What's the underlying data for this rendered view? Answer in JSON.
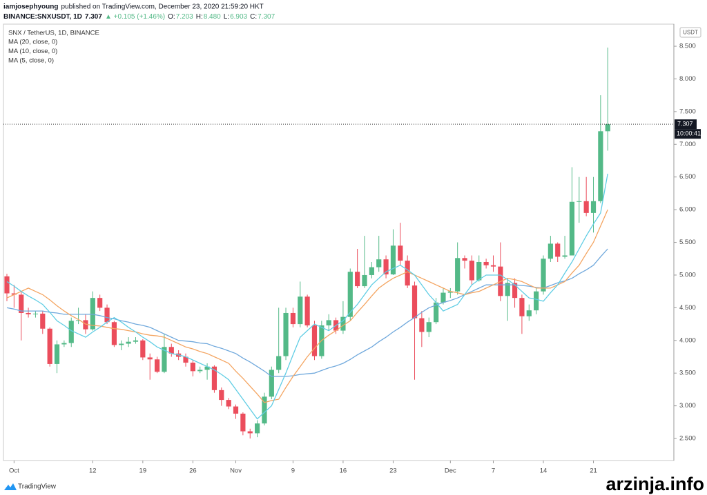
{
  "header": {
    "author": "iamjosephyoung",
    "published": "published on TradingView.com, December 23, 2020 21:59:20 HKT"
  },
  "branding": {
    "logo": "TradingView",
    "watermark": "arzinja.info"
  },
  "chart_data": {
    "type": "candlestick",
    "title": "SNX / TetherUS, 1D, BINANCE",
    "quote": {
      "symbol": "BINANCE:SNXUSDT, 1D",
      "last": "7.307",
      "change": "▲ +0.105 (+1.46%)",
      "fields": [
        [
          "O:",
          "7.203"
        ],
        [
          "H:",
          "8.480"
        ],
        [
          "L:",
          "6.903"
        ],
        [
          "C:",
          "7.307"
        ]
      ]
    },
    "currency": "USDT",
    "countdown": "10:00:41",
    "up_color": "#53b987",
    "down_color": "#eb4d5c",
    "categories": [
      null,
      "Oct",
      null,
      null,
      null,
      null,
      null,
      null,
      null,
      null,
      null,
      null,
      "12",
      null,
      null,
      null,
      null,
      null,
      null,
      "19",
      null,
      null,
      null,
      null,
      null,
      null,
      "26",
      null,
      null,
      null,
      null,
      null,
      "Nov",
      null,
      null,
      null,
      null,
      null,
      null,
      null,
      "9",
      null,
      null,
      null,
      null,
      null,
      null,
      "16",
      null,
      null,
      null,
      null,
      null,
      null,
      "23",
      null,
      null,
      null,
      null,
      null,
      null,
      null,
      "Dec",
      null,
      null,
      null,
      null,
      null,
      "7",
      null,
      null,
      null,
      null,
      null,
      null,
      "14",
      null,
      null,
      null,
      null,
      null,
      null,
      "21",
      null,
      null
    ],
    "open": [
      4.98,
      4.72,
      4.7,
      4.42,
      4.4,
      4.41,
      4.18,
      3.64,
      3.94,
      3.96,
      4.3,
      4.31,
      4.17,
      4.65,
      4.5,
      4.28,
      3.93,
      3.95,
      3.98,
      4.0,
      3.74,
      3.71,
      3.52,
      3.9,
      3.8,
      3.75,
      3.66,
      3.53,
      3.55,
      3.6,
      3.24,
      3.09,
      2.99,
      2.88,
      2.61,
      2.58,
      2.73,
      3.14,
      3.55,
      3.76,
      4.42,
      4.25,
      4.67,
      4.23,
      3.76,
      4.23,
      4.31,
      4.15,
      4.36,
      5.05,
      4.83,
      5.0,
      5.12,
      5.24,
      5.01,
      5.45,
      5.22,
      4.84,
      4.34,
      4.13,
      4.28,
      4.58,
      4.73,
      4.75,
      5.26,
      5.22,
      4.92,
      5.2,
      5.15,
      5.13,
      4.68,
      4.88,
      4.65,
      4.37,
      4.46,
      4.75,
      5.25,
      5.48,
      5.28,
      5.3,
      6.12,
      6.13,
      5.95,
      6.13,
      7.2
    ],
    "high": [
      5.02,
      4.85,
      4.75,
      4.5,
      4.45,
      4.45,
      4.2,
      4.0,
      4.0,
      4.35,
      4.5,
      4.4,
      4.75,
      4.7,
      4.55,
      4.3,
      4.0,
      4.05,
      4.05,
      4.02,
      3.8,
      3.75,
      4.1,
      3.95,
      3.85,
      3.8,
      3.7,
      3.6,
      3.65,
      3.62,
      3.28,
      3.12,
      3.02,
      2.9,
      2.65,
      2.78,
      3.2,
      3.6,
      4.5,
      4.5,
      4.5,
      4.9,
      4.7,
      4.3,
      4.3,
      4.4,
      4.35,
      4.6,
      5.1,
      5.4,
      5.6,
      5.2,
      5.6,
      5.3,
      5.7,
      5.8,
      5.3,
      4.9,
      4.45,
      4.35,
      4.65,
      4.8,
      4.8,
      5.5,
      5.3,
      5.3,
      5.3,
      5.25,
      5.3,
      5.5,
      4.95,
      4.95,
      4.7,
      4.55,
      4.8,
      5.3,
      5.6,
      5.5,
      5.6,
      6.65,
      6.5,
      6.5,
      6.5,
      7.75,
      8.48
    ],
    "low": [
      4.6,
      4.5,
      4.0,
      4.35,
      4.35,
      4.1,
      3.6,
      3.5,
      3.9,
      3.9,
      4.25,
      4.1,
      4.15,
      4.45,
      4.25,
      3.9,
      3.85,
      3.9,
      3.95,
      3.7,
      3.4,
      3.5,
      3.5,
      3.75,
      3.7,
      3.6,
      3.45,
      3.5,
      3.4,
      3.2,
      3.0,
      2.95,
      2.8,
      2.55,
      2.5,
      2.52,
      2.7,
      3.1,
      3.5,
      3.7,
      4.2,
      4.2,
      4.2,
      3.7,
      3.72,
      4.15,
      4.1,
      4.1,
      4.3,
      4.8,
      4.8,
      4.95,
      5.05,
      4.95,
      5.0,
      5.15,
      4.8,
      3.4,
      3.9,
      4.05,
      4.25,
      4.55,
      4.65,
      4.7,
      5.1,
      4.85,
      4.9,
      5.1,
      5.05,
      4.6,
      4.3,
      4.5,
      4.1,
      4.3,
      4.4,
      4.7,
      5.2,
      5.2,
      5.25,
      5.3,
      5.8,
      5.9,
      5.65,
      6.1,
      6.903
    ],
    "close": [
      4.72,
      4.7,
      4.42,
      4.4,
      4.41,
      4.18,
      3.64,
      3.94,
      3.96,
      4.3,
      4.31,
      4.17,
      4.65,
      4.5,
      4.28,
      3.93,
      3.95,
      3.98,
      4.0,
      3.74,
      3.71,
      3.52,
      3.9,
      3.8,
      3.75,
      3.66,
      3.53,
      3.55,
      3.6,
      3.24,
      3.09,
      2.99,
      2.88,
      2.61,
      2.58,
      2.73,
      3.14,
      3.55,
      3.76,
      4.42,
      4.25,
      4.67,
      4.23,
      3.76,
      4.23,
      4.31,
      4.15,
      4.36,
      5.05,
      4.83,
      5.0,
      5.12,
      5.24,
      5.01,
      5.45,
      5.22,
      4.84,
      4.34,
      4.13,
      4.28,
      4.58,
      4.73,
      4.75,
      5.26,
      5.22,
      4.92,
      5.2,
      5.15,
      5.13,
      4.68,
      4.88,
      4.65,
      4.37,
      4.46,
      4.75,
      5.25,
      5.48,
      5.28,
      5.3,
      6.12,
      6.13,
      5.95,
      6.13,
      7.2,
      7.307
    ],
    "ma_series": [
      {
        "name": "MA (20, close, 0)",
        "color": "#6fa8dc",
        "values": [
          4.5,
          4.48,
          4.45,
          4.45,
          4.45,
          4.45,
          4.43,
          4.42,
          4.4,
          4.4,
          4.4,
          4.4,
          4.4,
          4.38,
          4.35,
          4.33,
          4.3,
          4.28,
          4.25,
          4.23,
          4.2,
          4.15,
          4.1,
          4.05,
          4.0,
          3.99,
          3.98,
          3.96,
          3.95,
          3.91,
          3.88,
          3.84,
          3.8,
          3.73,
          3.67,
          3.6,
          3.53,
          3.45,
          3.45,
          3.45,
          3.46,
          3.48,
          3.49,
          3.5,
          3.54,
          3.58,
          3.61,
          3.65,
          3.71,
          3.78,
          3.84,
          3.9,
          3.98,
          4.05,
          4.13,
          4.2,
          4.28,
          4.35,
          4.43,
          4.5,
          4.54,
          4.58,
          4.61,
          4.65,
          4.7,
          4.75,
          4.8,
          4.85,
          4.85,
          4.85,
          4.85,
          4.85,
          4.84,
          4.83,
          4.81,
          4.8,
          4.84,
          4.88,
          4.91,
          4.95,
          5.02,
          5.08,
          5.15,
          5.28,
          5.4
        ]
      },
      {
        "name": "MA (10, close, 0)",
        "color": "#f4a460",
        "values": [
          4.65,
          4.7,
          4.75,
          4.8,
          4.75,
          4.7,
          4.62,
          4.53,
          4.45,
          4.38,
          4.32,
          4.25,
          4.23,
          4.22,
          4.2,
          4.18,
          4.17,
          4.15,
          4.13,
          4.1,
          4.08,
          4.07,
          4.05,
          4.0,
          3.95,
          3.9,
          3.87,
          3.83,
          3.8,
          3.75,
          3.7,
          3.65,
          3.53,
          3.42,
          3.3,
          3.18,
          3.05,
          3.08,
          3.1,
          3.28,
          3.45,
          3.6,
          3.75,
          3.88,
          4.0,
          4.08,
          4.15,
          4.23,
          4.3,
          4.43,
          4.55,
          4.68,
          4.8,
          4.88,
          4.95,
          5.0,
          5.05,
          5.0,
          4.95,
          4.9,
          4.85,
          4.8,
          4.75,
          4.73,
          4.7,
          4.73,
          4.75,
          4.8,
          4.85,
          4.9,
          4.95,
          4.93,
          4.9,
          4.85,
          4.8,
          4.8,
          4.8,
          4.85,
          4.9,
          5.03,
          5.15,
          5.33,
          5.5,
          5.75,
          6.0
        ]
      },
      {
        "name": "MA (5, close, 0)",
        "color": "#5fcde4",
        "values": [
          4.9,
          4.83,
          4.75,
          4.68,
          4.62,
          4.55,
          4.43,
          4.3,
          4.23,
          4.15,
          4.1,
          4.05,
          4.13,
          4.2,
          4.28,
          4.35,
          4.28,
          4.2,
          4.13,
          4.05,
          3.98,
          3.9,
          3.85,
          3.8,
          3.78,
          3.75,
          3.7,
          3.65,
          3.6,
          3.55,
          3.48,
          3.4,
          3.25,
          3.1,
          2.95,
          2.8,
          2.9,
          3.0,
          3.25,
          3.5,
          3.78,
          4.05,
          4.15,
          4.25,
          4.2,
          4.15,
          4.23,
          4.3,
          4.43,
          4.55,
          4.7,
          4.85,
          4.95,
          5.05,
          5.1,
          5.15,
          5.08,
          5.0,
          4.85,
          4.7,
          4.58,
          4.45,
          4.5,
          4.55,
          4.7,
          4.85,
          4.93,
          5.0,
          5.0,
          5.0,
          4.93,
          4.85,
          4.75,
          4.65,
          4.63,
          4.6,
          4.73,
          4.85,
          5.03,
          5.2,
          5.4,
          5.6,
          5.78,
          5.95,
          6.55
        ]
      }
    ],
    "ylim": [
      2.163,
      8.838
    ],
    "yticks": [
      {
        "value": 2.5,
        "label": "2.500"
      },
      {
        "value": 3,
        "label": "3.000"
      },
      {
        "value": 3.5,
        "label": "3.500"
      },
      {
        "value": 4,
        "label": "4.000"
      },
      {
        "value": 4.5,
        "label": "4.500"
      },
      {
        "value": 5,
        "label": "5.000"
      },
      {
        "value": 5.5,
        "label": "5.500"
      },
      {
        "value": 6,
        "label": "6.000"
      },
      {
        "value": 6.5,
        "label": "6.500"
      },
      {
        "value": 7,
        "label": "7.000"
      },
      {
        "value": 7.5,
        "label": "7.500"
      },
      {
        "value": 8,
        "label": "8.000"
      },
      {
        "value": 8.5,
        "label": "8.500"
      }
    ]
  }
}
